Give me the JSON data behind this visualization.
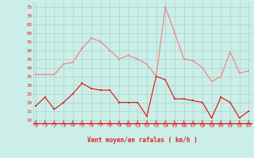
{
  "x": [
    0,
    1,
    2,
    3,
    4,
    5,
    6,
    7,
    8,
    9,
    10,
    11,
    12,
    13,
    14,
    15,
    16,
    17,
    18,
    19,
    20,
    21,
    22,
    23
  ],
  "avg_wind": [
    18,
    23,
    16,
    20,
    25,
    31,
    28,
    27,
    27,
    20,
    20,
    20,
    12,
    35,
    33,
    22,
    22,
    21,
    20,
    11,
    23,
    20,
    11,
    15
  ],
  "gust_wind": [
    36,
    36,
    36,
    42,
    43,
    51,
    57,
    55,
    50,
    45,
    47,
    45,
    42,
    35,
    75,
    60,
    45,
    44,
    40,
    32,
    35,
    49,
    37,
    38
  ],
  "line_avg_color": "#dd2222",
  "line_gust_color": "#f08888",
  "background_color": "#cceee8",
  "grid_color": "#aad8d0",
  "xlabel": "Vent moyen/en rafales ( km/h )",
  "xlabel_color": "#dd2222",
  "tick_color": "#dd2222",
  "yticks": [
    10,
    15,
    20,
    25,
    30,
    35,
    40,
    45,
    50,
    55,
    60,
    65,
    70,
    75
  ],
  "xticks": [
    0,
    1,
    2,
    3,
    4,
    5,
    6,
    7,
    8,
    9,
    10,
    11,
    12,
    13,
    14,
    15,
    16,
    17,
    18,
    19,
    20,
    21,
    22,
    23
  ],
  "ylim": [
    8,
    78
  ],
  "xlim": [
    -0.3,
    23.3
  ]
}
